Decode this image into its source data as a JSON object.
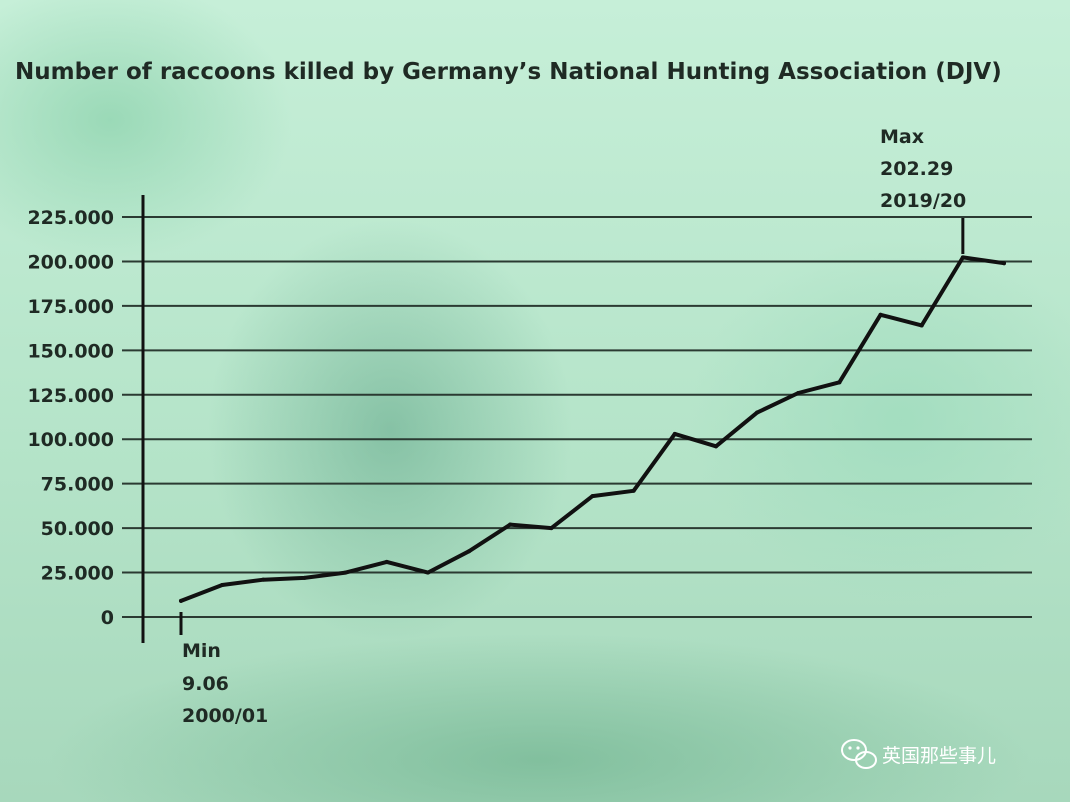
{
  "chart_data": {
    "type": "line",
    "title": "Number of raccoons killed by Germany’s National Hunting Association (DJV)",
    "ylim": [
      0,
      225000
    ],
    "yticks": [
      0,
      25000,
      50000,
      75000,
      100000,
      125000,
      150000,
      175000,
      200000,
      225000
    ],
    "ytick_labels": [
      "0",
      "25.000",
      "50.000",
      "75.000",
      "100.000",
      "125.000",
      "150.000",
      "175.000",
      "200.000",
      "225.000"
    ],
    "grid": true,
    "series": [
      {
        "values": [
          9060,
          18000,
          21000,
          22000,
          25000,
          31000,
          25000,
          37000,
          52000,
          50000,
          68000,
          71000,
          103000,
          96000,
          115000,
          126000,
          132000,
          170000,
          164000,
          202290,
          199000
        ]
      }
    ],
    "annotations": {
      "min": {
        "label": "Min",
        "value": "9.06",
        "period": "2000/01"
      },
      "max": {
        "label": "Max",
        "value": "202.29",
        "period": "2019/20"
      }
    }
  },
  "watermark": {
    "text": "英国那些事儿",
    "icon": "wechat-icon"
  },
  "colors": {
    "line": "#111111",
    "grid": "#2b3a32",
    "text": "#1f2a24",
    "background": "#b8e6cc"
  }
}
